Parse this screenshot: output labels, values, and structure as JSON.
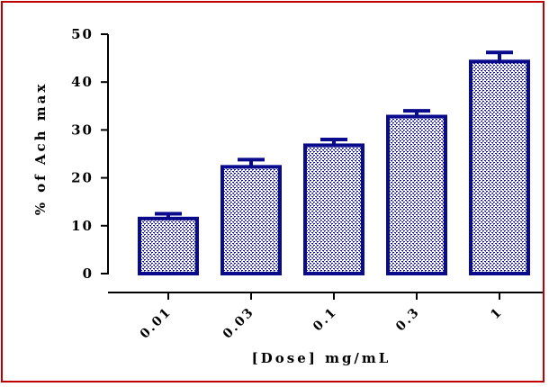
{
  "chart_data": {
    "type": "bar",
    "categories": [
      "0.01",
      "0.03",
      "0.1",
      "0.3",
      "1"
    ],
    "values": [
      11.5,
      22.3,
      26.8,
      32.8,
      44.3
    ],
    "errors": [
      1.0,
      1.5,
      1.2,
      1.2,
      1.9
    ],
    "title": "",
    "xlabel": "[Dose] mg/mL",
    "ylabel": "% of Ach max",
    "ylim": [
      0,
      50
    ],
    "yticks": [
      0,
      10,
      20,
      30,
      40,
      50
    ],
    "grid": false,
    "legend": "none",
    "colors": {
      "bar_edge": "#0a0a8c",
      "bar_fill_pattern": "#0a0a8c",
      "frame": "#c00000"
    }
  }
}
